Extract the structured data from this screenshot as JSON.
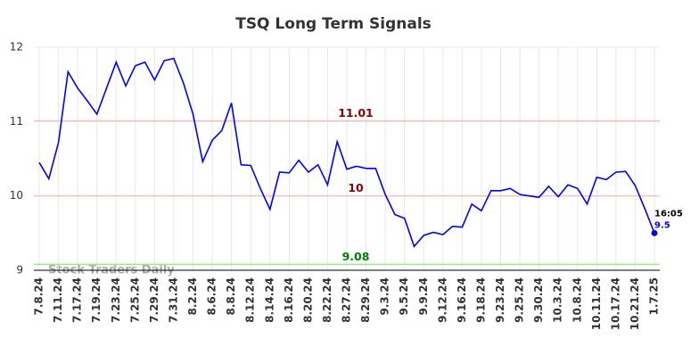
{
  "chart_data": {
    "type": "line",
    "title": "TSQ Long Term Signals",
    "categories": [
      "7.8.24",
      null,
      "7.11.24",
      null,
      "7.17.24",
      null,
      "7.19.24",
      null,
      "7.23.24",
      null,
      "7.25.24",
      null,
      "7.29.24",
      null,
      "7.31.24",
      null,
      "8.2.24",
      null,
      "8.6.24",
      null,
      "8.8.24",
      null,
      "8.12.24",
      null,
      "8.14.24",
      null,
      "8.16.24",
      null,
      "8.20.24",
      null,
      "8.22.24",
      null,
      "8.27.24",
      null,
      "8.29.24",
      null,
      "9.3.24",
      null,
      "9.5.24",
      null,
      "9.9.24",
      null,
      "9.12.24",
      null,
      "9.16.24",
      null,
      "9.18.24",
      null,
      "9.23.24",
      null,
      "9.25.24",
      null,
      "9.30.24",
      null,
      "10.3.24",
      null,
      "10.8.24",
      null,
      "10.11.24",
      null,
      "10.17.24",
      null,
      "10.21.24",
      null,
      "1.7.25"
    ],
    "values": [
      10.45,
      10.23,
      10.72,
      11.67,
      11.45,
      11.28,
      11.1,
      11.45,
      11.8,
      11.48,
      11.75,
      11.8,
      11.56,
      11.82,
      11.85,
      11.52,
      11.1,
      10.46,
      10.75,
      10.88,
      11.25,
      10.42,
      10.41,
      10.1,
      9.82,
      10.32,
      10.31,
      10.48,
      10.32,
      10.42,
      10.15,
      10.73,
      10.36,
      10.4,
      10.37,
      10.37,
      10.02,
      9.75,
      9.7,
      9.32,
      9.47,
      9.51,
      9.48,
      9.59,
      9.58,
      9.89,
      9.8,
      10.07,
      10.07,
      10.1,
      10.02,
      10.0,
      9.98,
      10.13,
      9.99,
      10.15,
      10.1,
      9.89,
      10.25,
      10.22,
      10.32,
      10.33,
      10.14,
      9.83,
      9.5
    ],
    "color": "#0000ff",
    "ylim": [
      9,
      12
    ],
    "yticks": [
      9,
      10,
      11,
      12
    ],
    "grid": true,
    "hlines": [
      {
        "value": 11.01,
        "line_color": "#f8c0c0",
        "label_color": "#8b0000"
      },
      {
        "value": 10,
        "line_color": "#f8c0c0",
        "label_color": "#8b0000"
      },
      {
        "value": 9.08,
        "line_color": "#90ee90",
        "label_color": "#008000"
      }
    ],
    "last_time": "16:05",
    "watermark": "Stock Traders Daily"
  }
}
